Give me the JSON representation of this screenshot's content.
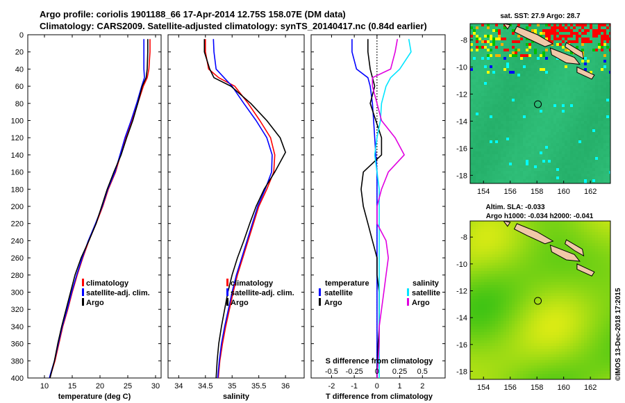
{
  "header": {
    "line1": "Argo profile: coriolis 1901188_66 17-Apr-2014 12.75S 158.07E (DM data)",
    "line2": "Climatology: CARS2009. Satellite-adjusted climatology: synTS_20140417.nc (0.84d earlier)"
  },
  "colors": {
    "climatology": "#ff0000",
    "satellite": "#0000ff",
    "argo": "#000000",
    "satellite_salinity": "#00e5ff",
    "argo_salinity": "#e000e0"
  },
  "credit": "©IMOS 13-Dec-2018 17:2015",
  "chart_data": [
    {
      "type": "line",
      "name": "temperature-profile",
      "xlabel": "temperature (deg C)",
      "ylabel": "depth",
      "xlim": [
        7,
        31
      ],
      "ylim": [
        0,
        400
      ],
      "xticks": [
        10,
        15,
        20,
        25,
        30
      ],
      "yticks": [
        0,
        20,
        40,
        60,
        80,
        100,
        120,
        140,
        160,
        180,
        200,
        220,
        240,
        260,
        280,
        300,
        320,
        340,
        360,
        380,
        400
      ],
      "legend": [
        "climatology",
        "satellite-adj. clim.",
        "Argo"
      ],
      "series": [
        {
          "name": "climatology",
          "color": "#ff0000",
          "x": [
            29.0,
            29.0,
            28.8,
            28.5,
            27.8,
            26.8,
            25.7,
            24.6,
            23.7,
            22.8,
            21.5,
            20.5,
            19.3,
            18.0,
            16.9,
            15.9,
            15.0,
            14.2,
            13.3,
            12.6,
            11.9,
            11.2,
            10.6
          ],
          "y": [
            5,
            20,
            40,
            50,
            60,
            80,
            100,
            120,
            140,
            160,
            180,
            200,
            220,
            240,
            260,
            280,
            300,
            320,
            340,
            360,
            380,
            395,
            410
          ]
        },
        {
          "name": "satellite-adj. clim.",
          "color": "#0000ff",
          "x": [
            27.9,
            27.9,
            27.9,
            28.0,
            27.5,
            26.6,
            25.6,
            24.5,
            23.6,
            22.7,
            21.4,
            20.4,
            19.2,
            17.9,
            16.8,
            15.8,
            14.9,
            14.1,
            13.2,
            12.5,
            11.8,
            11.1,
            10.5
          ],
          "y": [
            5,
            20,
            40,
            50,
            60,
            80,
            100,
            120,
            140,
            160,
            180,
            200,
            220,
            240,
            260,
            280,
            300,
            320,
            340,
            360,
            380,
            395,
            410
          ]
        },
        {
          "name": "Argo",
          "color": "#000000",
          "x": [
            28.6,
            28.6,
            28.5,
            28.3,
            27.6,
            26.8,
            25.9,
            24.8,
            23.8,
            22.5,
            21.3,
            20.3,
            19.3,
            18.0,
            16.6,
            15.5,
            14.7,
            13.9,
            13.1,
            12.4,
            11.8,
            11.2,
            10.6
          ],
          "y": [
            5,
            20,
            40,
            50,
            60,
            80,
            100,
            120,
            140,
            160,
            180,
            200,
            220,
            240,
            260,
            280,
            300,
            320,
            340,
            360,
            380,
            395,
            410
          ]
        }
      ]
    },
    {
      "type": "line",
      "name": "salinity-profile",
      "xlabel": "salinity",
      "xlim": [
        33.8,
        36.35
      ],
      "ylim": [
        0,
        400
      ],
      "xticks": [
        34,
        34.5,
        35,
        35.5,
        36
      ],
      "legend": [
        "climatology",
        "satellite-adj. clim.",
        "Argo"
      ],
      "series": [
        {
          "name": "climatology",
          "color": "#ff0000",
          "x": [
            34.5,
            34.5,
            34.56,
            34.75,
            35.05,
            35.3,
            35.52,
            35.72,
            35.8,
            35.78,
            35.65,
            35.5,
            35.4,
            35.3,
            35.2,
            35.1,
            35.02,
            34.95,
            34.88,
            34.82,
            34.77,
            34.74
          ],
          "y": [
            5,
            20,
            40,
            50,
            60,
            80,
            100,
            120,
            140,
            160,
            180,
            200,
            220,
            240,
            260,
            280,
            300,
            320,
            340,
            360,
            380,
            400
          ]
        },
        {
          "name": "satellite-adj. clim.",
          "color": "#0000ff",
          "x": [
            34.65,
            34.66,
            34.7,
            34.85,
            35.0,
            35.22,
            35.45,
            35.65,
            35.75,
            35.74,
            35.62,
            35.48,
            35.38,
            35.28,
            35.18,
            35.08,
            35.0,
            34.93,
            34.86,
            34.8,
            34.76,
            34.73
          ],
          "y": [
            5,
            20,
            40,
            50,
            60,
            80,
            100,
            120,
            140,
            160,
            180,
            200,
            220,
            240,
            260,
            280,
            300,
            320,
            340,
            360,
            380,
            400
          ]
        },
        {
          "name": "Argo",
          "color": "#000000",
          "x": [
            34.48,
            34.48,
            34.58,
            34.66,
            34.98,
            35.35,
            35.65,
            35.9,
            36.0,
            35.8,
            35.6,
            35.45,
            35.33,
            35.22,
            35.1,
            35.0,
            34.92,
            34.86,
            34.8,
            34.75,
            34.72,
            34.7
          ],
          "y": [
            5,
            20,
            40,
            50,
            60,
            80,
            100,
            120,
            137,
            160,
            180,
            200,
            220,
            240,
            260,
            280,
            300,
            320,
            340,
            360,
            380,
            400
          ]
        }
      ]
    },
    {
      "type": "line",
      "name": "difference-profile",
      "xlabel": "T difference from climatology",
      "xlabel_top": "S difference from climatology",
      "xlim": [
        -2.9,
        3.0
      ],
      "ylim": [
        0,
        400
      ],
      "xticks": [
        -2,
        -1,
        0,
        1,
        2
      ],
      "xticks_salinity": [
        "-0.5",
        "-0.25",
        "0",
        "0.25",
        "0.5"
      ],
      "legend_temperature_title": "temperature",
      "legend_salinity_title": "salinity",
      "legend_temperature": [
        "satellite",
        "Argo"
      ],
      "legend_salinity": [
        "satellite",
        "Argo"
      ],
      "series": [
        {
          "name": "temperature satellite",
          "color": "#0000ff",
          "x": [
            -1.1,
            -1.1,
            -0.9,
            -0.4,
            -0.3,
            -0.2,
            -0.15,
            -0.1,
            -0.05,
            0.0,
            0.0,
            0.0,
            0.0,
            0.0,
            0.0,
            0.0,
            0.0,
            0.0,
            0.0,
            0.0,
            0.0
          ],
          "y": [
            5,
            20,
            40,
            50,
            60,
            80,
            100,
            120,
            140,
            160,
            180,
            200,
            220,
            240,
            260,
            280,
            300,
            320,
            340,
            360,
            400
          ]
        },
        {
          "name": "temperature Argo",
          "color": "#000000",
          "x": [
            -0.4,
            -0.4,
            -0.3,
            -0.2,
            -0.1,
            -0.3,
            -0.05,
            0.2,
            0.2,
            -0.6,
            -0.7,
            -0.6,
            -0.4,
            -0.2,
            0.0,
            0.0,
            0.1,
            0.1,
            0.1,
            0.05,
            0.0
          ],
          "y": [
            5,
            20,
            40,
            50,
            60,
            80,
            100,
            120,
            140,
            160,
            180,
            200,
            220,
            240,
            260,
            280,
            300,
            320,
            340,
            360,
            400
          ]
        },
        {
          "name": "salinity satellite",
          "color": "#00e5ff",
          "x": [
            1.4,
            1.5,
            1.0,
            0.6,
            0.4,
            0.2,
            0.15,
            0.0,
            -0.1,
            0.0,
            0.1,
            0.1,
            0.1,
            0.1,
            0.1,
            0.1,
            0.1,
            0.1,
            0.1,
            0.1,
            0.1
          ],
          "y": [
            5,
            20,
            40,
            50,
            60,
            80,
            100,
            120,
            140,
            160,
            180,
            200,
            220,
            240,
            260,
            280,
            300,
            320,
            340,
            360,
            400
          ]
        },
        {
          "name": "salinity Argo",
          "color": "#e000e0",
          "x": [
            0.9,
            0.8,
            0.6,
            -0.2,
            -0.2,
            0.0,
            0.2,
            0.8,
            1.2,
            0.5,
            0.2,
            0.0,
            0.0,
            0.4,
            0.5,
            0.4,
            0.3,
            0.2,
            0.1,
            0.1,
            0.0
          ],
          "y": [
            5,
            20,
            40,
            50,
            60,
            80,
            100,
            120,
            140,
            160,
            180,
            200,
            220,
            240,
            260,
            280,
            300,
            320,
            340,
            360,
            400
          ]
        }
      ]
    },
    {
      "type": "heatmap",
      "name": "sst-map",
      "title": "sat. SST: 27.9 Argo: 28.7",
      "xlim": [
        153,
        163.5
      ],
      "ylim": [
        -18.6,
        -6.8
      ],
      "xticks": [
        154,
        156,
        158,
        160,
        162
      ],
      "yticks": [
        -8,
        -10,
        -12,
        -14,
        -16,
        -18
      ],
      "float_position": [
        158.07,
        -12.75
      ]
    },
    {
      "type": "heatmap",
      "name": "sla-map",
      "title": "Altim. SLA: -0.033",
      "subtitle": "Argo h1000: -0.034 h2000: -0.041",
      "xlim": [
        153,
        163.5
      ],
      "ylim": [
        -18.6,
        -6.8
      ],
      "xticks": [
        154,
        156,
        158,
        160,
        162
      ],
      "yticks": [
        -8,
        -10,
        -12,
        -14,
        -16,
        -18
      ],
      "float_position": [
        158.07,
        -12.75
      ]
    }
  ]
}
